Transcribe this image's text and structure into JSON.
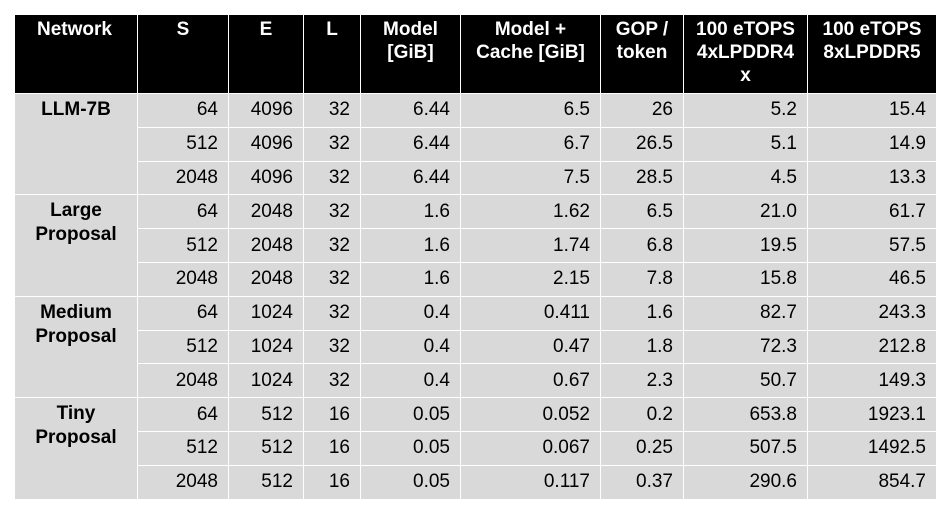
{
  "headers": [
    "Network",
    "S",
    "E",
    "L",
    "Model [GiB]",
    "Model + Cache [GiB]",
    "GOP / token",
    "100 eTOPS 4xLPDDR4 x",
    "100 eTOPS 8xLPDDR5"
  ],
  "groups": [
    {
      "network": "LLM-7B",
      "rows": [
        [
          "64",
          "4096",
          "32",
          "6.44",
          "6.5",
          "26",
          "5.2",
          "15.4"
        ],
        [
          "512",
          "4096",
          "32",
          "6.44",
          "6.7",
          "26.5",
          "5.1",
          "14.9"
        ],
        [
          "2048",
          "4096",
          "32",
          "6.44",
          "7.5",
          "28.5",
          "4.5",
          "13.3"
        ]
      ]
    },
    {
      "network": "Large Proposal",
      "rows": [
        [
          "64",
          "2048",
          "32",
          "1.6",
          "1.62",
          "6.5",
          "21.0",
          "61.7"
        ],
        [
          "512",
          "2048",
          "32",
          "1.6",
          "1.74",
          "6.8",
          "19.5",
          "57.5"
        ],
        [
          "2048",
          "2048",
          "32",
          "1.6",
          "2.15",
          "7.8",
          "15.8",
          "46.5"
        ]
      ]
    },
    {
      "network": "Medium Proposal",
      "rows": [
        [
          "64",
          "1024",
          "32",
          "0.4",
          "0.411",
          "1.6",
          "82.7",
          "243.3"
        ],
        [
          "512",
          "1024",
          "32",
          "0.4",
          "0.47",
          "1.8",
          "72.3",
          "212.8"
        ],
        [
          "2048",
          "1024",
          "32",
          "0.4",
          "0.67",
          "2.3",
          "50.7",
          "149.3"
        ]
      ]
    },
    {
      "network": "Tiny Proposal",
      "rows": [
        [
          "64",
          "512",
          "16",
          "0.05",
          "0.052",
          "0.2",
          "653.8",
          "1923.1"
        ],
        [
          "512",
          "512",
          "16",
          "0.05",
          "0.067",
          "0.25",
          "507.5",
          "1492.5"
        ],
        [
          "2048",
          "512",
          "16",
          "0.05",
          "0.117",
          "0.37",
          "290.6",
          "854.7"
        ]
      ]
    }
  ]
}
